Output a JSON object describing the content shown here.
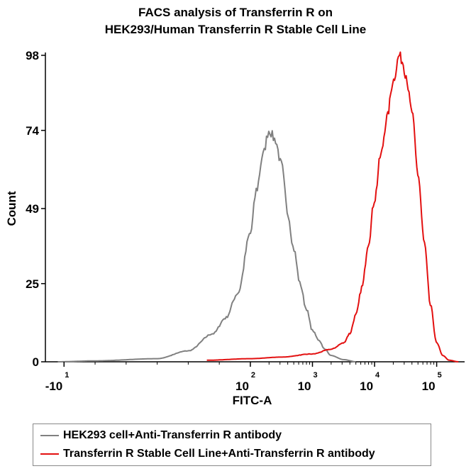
{
  "chart_data": {
    "type": "line",
    "title": [
      "FACS analysis of Transferrin R on",
      "HEK293/Human Transferrin R Stable Cell Line"
    ],
    "xlabel": "FITC-A",
    "ylabel": "Count",
    "xscale": "log",
    "yticks": [
      "0",
      "25",
      "49",
      "74",
      "98"
    ],
    "ytick_values": [
      0,
      25,
      49,
      74,
      98
    ],
    "ylim": [
      0,
      98
    ],
    "xticks": [
      {
        "base": "-10",
        "exp": "1",
        "value": -1
      },
      {
        "base": "10",
        "exp": "2",
        "value": 2
      },
      {
        "base": "10",
        "exp": "3",
        "value": 3
      },
      {
        "base": "10",
        "exp": "4",
        "value": 4
      },
      {
        "base": "10",
        "exp": "5",
        "value": 5
      }
    ],
    "xlim": [
      -1.3,
      5.45
    ],
    "grid": false,
    "legend_position": "bottom",
    "series": [
      {
        "name": "HEK293 cell+Anti-Transferrin R antibody",
        "color": "#808080",
        "x": [
          -1.1,
          -0.5,
          0.5,
          1.0,
          1.4,
          1.6,
          1.8,
          2.0,
          2.1,
          2.2,
          2.3,
          2.4,
          2.5,
          2.6,
          2.7,
          2.8,
          2.9,
          3.0,
          3.1,
          3.2,
          3.3,
          3.5,
          3.7
        ],
        "y": [
          0,
          0.3,
          1.0,
          3.5,
          9,
          14,
          22,
          41,
          55,
          66,
          74,
          71,
          63,
          48,
          36,
          25,
          17,
          10,
          7,
          4,
          2,
          0.7,
          0
        ]
      },
      {
        "name": "Transferrin R Stable Cell Line+Anti-Transferrin R antibody",
        "color": "#e31010",
        "x": [
          1.3,
          2.0,
          2.5,
          3.0,
          3.3,
          3.5,
          3.6,
          3.7,
          3.8,
          3.9,
          4.0,
          4.1,
          4.2,
          4.3,
          4.4,
          4.45,
          4.5,
          4.6,
          4.7,
          4.8,
          4.9,
          5.0,
          5.1,
          5.2,
          5.35
        ],
        "y": [
          0.5,
          1.0,
          1.5,
          2.5,
          4,
          6,
          9,
          15,
          24,
          38,
          52,
          66,
          78,
          90,
          98,
          96,
          92,
          80,
          60,
          38,
          18,
          6,
          2,
          0.5,
          0
        ]
      }
    ]
  },
  "legend": {
    "items": [
      {
        "label": "HEK293 cell+Anti-Transferrin R antibody",
        "color": "#808080"
      },
      {
        "label": "Transferrin R Stable Cell Line+Anti-Transferrin R antibody",
        "color": "#e31010"
      }
    ]
  }
}
